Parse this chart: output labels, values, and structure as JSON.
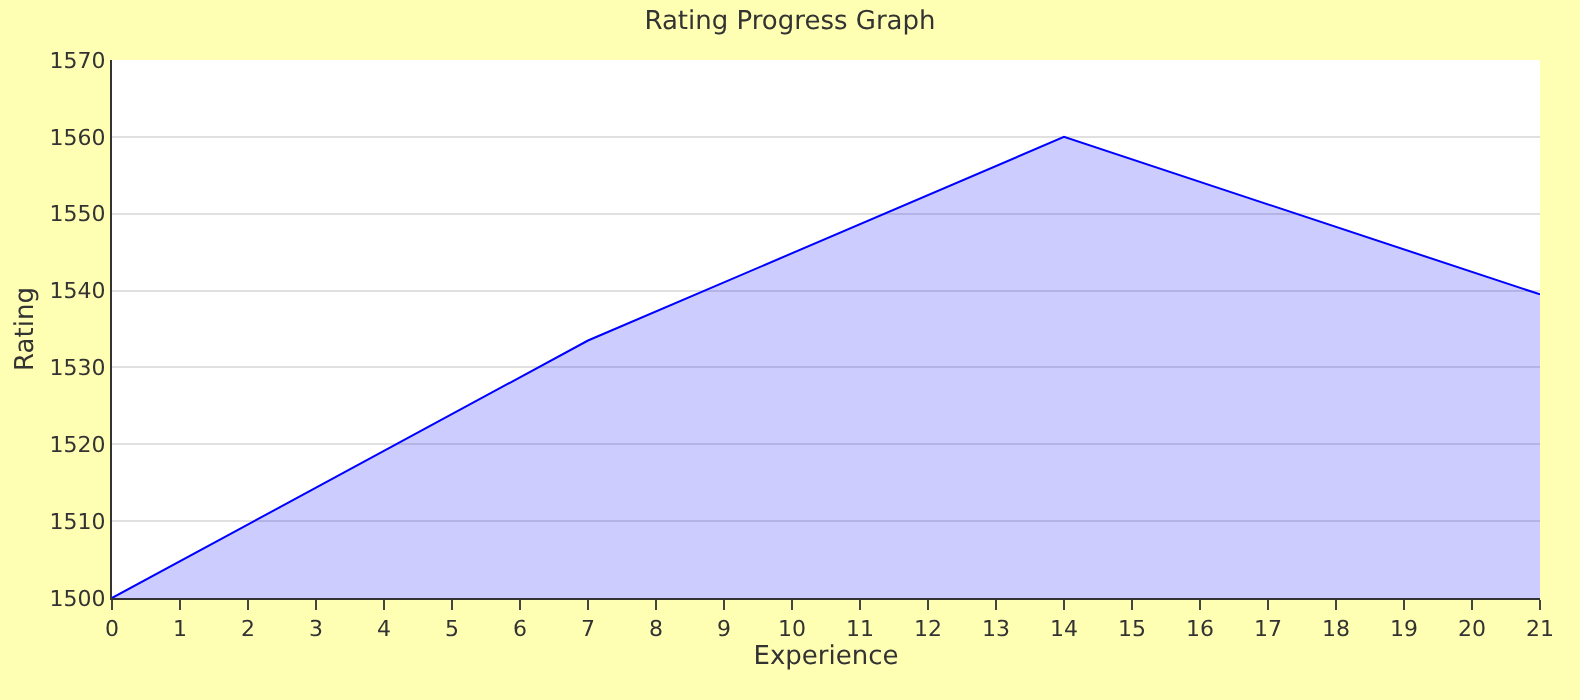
{
  "chart_data": {
    "type": "area",
    "title": "Rating Progress Graph",
    "xlabel": "Experience",
    "ylabel": "Rating",
    "x": [
      0,
      7,
      14,
      21
    ],
    "series": [
      {
        "color": "#0000ff",
        "values": [
          1500,
          1533.5,
          1560,
          1539.5
        ]
      }
    ],
    "xlim": [
      0,
      21
    ],
    "xticks": [
      0,
      1,
      2,
      3,
      4,
      5,
      6,
      7,
      8,
      9,
      10,
      11,
      12,
      13,
      14,
      15,
      16,
      17,
      18,
      19,
      20,
      21
    ],
    "ylim": [
      1500,
      1570
    ],
    "yticks": [
      1500,
      1510,
      1520,
      1530,
      1540,
      1550,
      1560,
      1570
    ],
    "grid": "y",
    "marker": "none",
    "line_style": "solid"
  }
}
